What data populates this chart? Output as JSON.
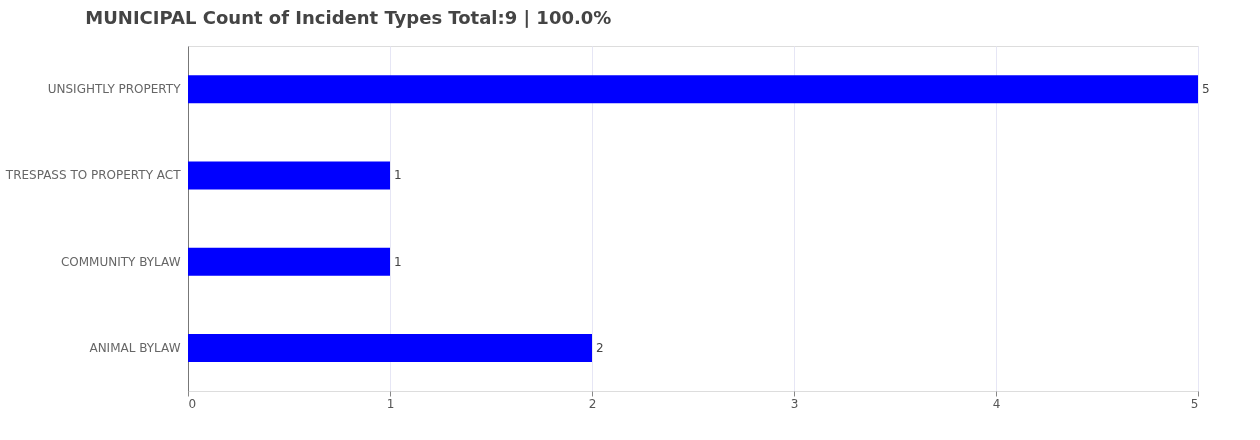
{
  "chart_data": {
    "type": "bar",
    "orientation": "horizontal",
    "title": "MUNICIPAL Count of Incident Types Total:9 | 100.0%",
    "categories": [
      "UNSIGHTLY PROPERTY",
      "TRESPASS TO PROPERTY ACT",
      "COMMUNITY BYLAW",
      "ANIMAL BYLAW"
    ],
    "values": [
      5,
      1,
      1,
      2
    ],
    "color": "#0000ff",
    "xlim": [
      0,
      5
    ],
    "xticks": [
      0,
      1,
      2,
      3,
      4,
      5
    ],
    "grid": "x",
    "data_labels": true
  }
}
